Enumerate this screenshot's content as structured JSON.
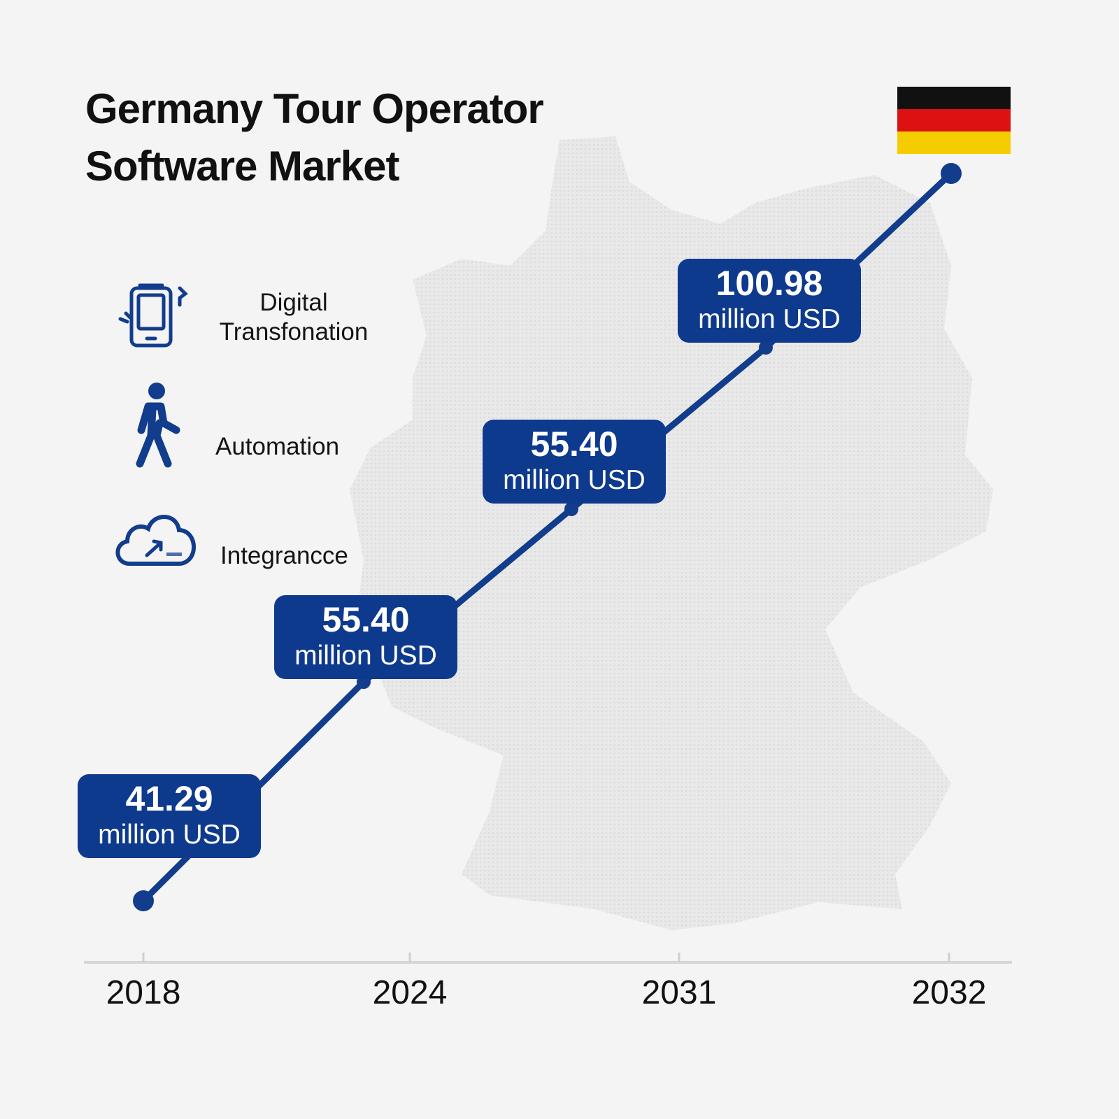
{
  "title_line1": "Germany Tour Operator",
  "title_line2": "Software Market",
  "colors": {
    "line": "#123c8c",
    "box": "#0e3a8e",
    "flag": [
      "#111111",
      "#dd1111",
      "#f5cc00"
    ]
  },
  "features": [
    {
      "icon": "smartphone-icon",
      "label_line1": "Digital",
      "label_line2": "Transfonation"
    },
    {
      "icon": "walking-person-icon",
      "label_line1": "Automation"
    },
    {
      "icon": "cloud-upload-icon",
      "label_line1": "Integrancce"
    }
  ],
  "chart_data": {
    "type": "line",
    "categories": [
      "2018",
      "2024",
      "2031",
      "2032"
    ],
    "data_labels": [
      {
        "value": "41.29",
        "unit": "million USD"
      },
      {
        "value": "55.40",
        "unit": "million USD"
      },
      {
        "value": "55.40",
        "unit": "million USD"
      },
      {
        "value": "100.98",
        "unit": "million USD"
      }
    ],
    "values": [
      41.29,
      55.4,
      55.4,
      100.98
    ],
    "grid": false
  }
}
